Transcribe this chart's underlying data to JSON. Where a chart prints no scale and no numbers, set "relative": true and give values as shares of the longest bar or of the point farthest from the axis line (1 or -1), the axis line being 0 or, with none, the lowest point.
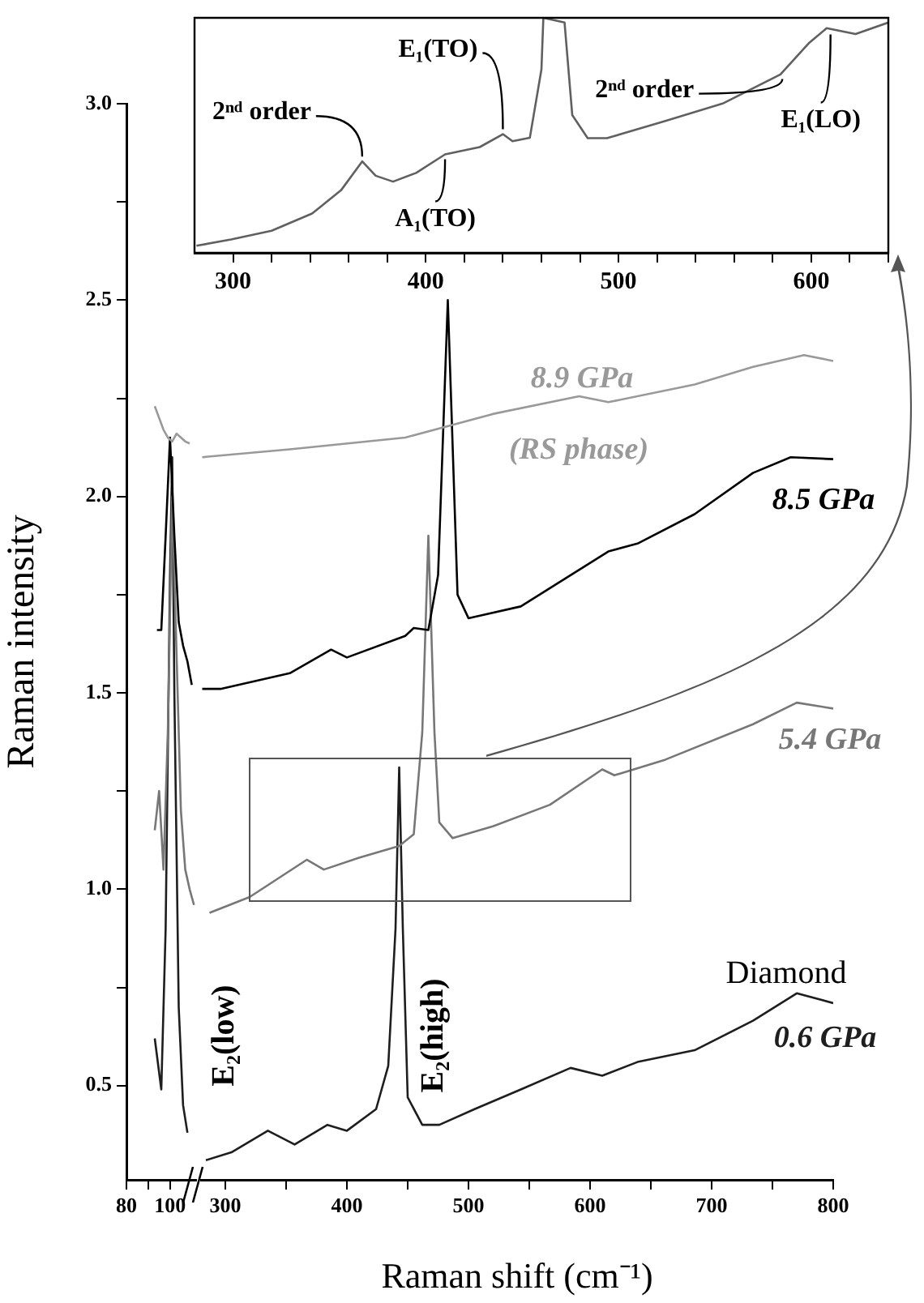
{
  "chart_data": [
    {
      "type": "line",
      "ylabel": "Raman intensity",
      "xlim": [
        80,
        112
      ],
      "xticks": [
        80,
        {
          "value": 90,
          "label": null
        },
        100
      ],
      "ylim": [
        0.26,
        3.0
      ],
      "yticks": [
        0.5,
        {
          "value": 0.75,
          "label": null
        },
        {
          "value": 1,
          "label": "1.0"
        },
        {
          "value": 1.25,
          "label": null
        },
        1.5,
        {
          "value": 1.75,
          "label": null
        },
        {
          "value": 2,
          "label": "2.0"
        },
        {
          "value": 2.25,
          "label": null
        },
        2.5,
        {
          "value": 2.75,
          "label": null
        },
        {
          "value": 3,
          "label": "3.0"
        }
      ],
      "series": [
        {
          "color": "#999999",
          "x": [
            93,
            95,
            97,
            99,
            101,
            103,
            105,
            107,
            109
          ],
          "values": [
            2.23,
            2.2,
            2.17,
            2.15,
            2.14,
            2.16,
            2.15,
            2.14,
            2.135
          ]
        },
        {
          "color": "#000000",
          "x": [
            94,
            96,
            98,
            100,
            102,
            104,
            106,
            108,
            110
          ],
          "values": [
            1.66,
            1.66,
            1.9,
            2.15,
            1.9,
            1.68,
            1.62,
            1.58,
            1.52
          ]
        },
        {
          "color": "#777777",
          "x": [
            93,
            95,
            97,
            99,
            101,
            103,
            105,
            107,
            109,
            111
          ],
          "values": [
            1.15,
            1.25,
            1.05,
            1.4,
            2.0,
            1.6,
            1.2,
            1.05,
            1.0,
            0.96
          ]
        },
        {
          "color": "#1e1e1e",
          "x": [
            93,
            96,
            98,
            100,
            101,
            102,
            104,
            106,
            108
          ],
          "values": [
            0.62,
            0.49,
            0.9,
            1.8,
            2.1,
            1.5,
            0.7,
            0.45,
            0.38
          ]
        }
      ]
    },
    {
      "type": "line",
      "xlabel": "Raman shift (cm⁻¹)",
      "xlim": [
        280,
        800
      ],
      "xticks": [
        300,
        {
          "value": 350,
          "label": null
        },
        400,
        {
          "value": 450,
          "label": null
        },
        500,
        {
          "value": 550,
          "label": null
        },
        600,
        {
          "value": 650,
          "label": null
        },
        700,
        {
          "value": 750,
          "label": null
        },
        800
      ],
      "ylim": [
        0.26,
        3.0
      ],
      "tick_labels": "x",
      "series": [
        {
          "name": "8.9 GPa",
          "color": "#999999",
          "x": [
            281,
            353,
            448,
            520,
            591,
            615,
            686,
            734,
            776,
            800
          ],
          "values": [
            2.1,
            2.12,
            2.15,
            2.21,
            2.255,
            2.24,
            2.285,
            2.33,
            2.36,
            2.345
          ]
        },
        {
          "name": "8.5 GPa",
          "color": "#000000",
          "x": [
            281,
            296,
            353,
            387,
            400,
            448,
            455,
            467,
            475,
            483,
            491,
            500,
            543,
            615,
            639,
            686,
            734,
            765,
            800
          ],
          "values": [
            1.51,
            1.51,
            1.55,
            1.61,
            1.59,
            1.645,
            1.665,
            1.66,
            1.8,
            2.5,
            1.75,
            1.69,
            1.72,
            1.86,
            1.88,
            1.955,
            2.06,
            2.1,
            2.095
          ]
        },
        {
          "name": "5.4 GPa",
          "color": "#777777",
          "x": [
            287,
            320,
            367,
            381,
            410,
            443,
            455,
            462,
            467,
            472,
            476,
            487,
            520,
            567,
            610,
            620,
            662,
            734,
            770,
            800
          ],
          "values": [
            0.94,
            0.98,
            1.075,
            1.05,
            1.08,
            1.11,
            1.14,
            1.4,
            1.9,
            1.4,
            1.17,
            1.13,
            1.16,
            1.215,
            1.305,
            1.29,
            1.33,
            1.42,
            1.475,
            1.46
          ]
        },
        {
          "name": "0.6 GPa",
          "color": "#1e1e1e",
          "x": [
            284,
            305,
            335,
            357,
            384,
            400,
            424,
            434,
            440,
            443,
            446,
            450,
            462,
            476,
            505,
            543,
            584,
            610,
            639,
            686,
            734,
            770,
            800
          ],
          "values": [
            0.31,
            0.33,
            0.385,
            0.35,
            0.4,
            0.385,
            0.44,
            0.55,
            0.9,
            1.31,
            0.9,
            0.47,
            0.4,
            0.4,
            0.44,
            0.49,
            0.545,
            0.525,
            0.56,
            0.59,
            0.665,
            0.735,
            0.71
          ]
        }
      ],
      "annotations": [
        "(RS phase)",
        "Diamond",
        "E₂(low)",
        "E₂(high)"
      ]
    },
    {
      "type": "line",
      "relative": true,
      "xlim": [
        280,
        640
      ],
      "xticks": [
        300,
        {
          "value": 320,
          "label": null
        },
        {
          "value": 340,
          "label": null
        },
        {
          "value": 360,
          "label": null
        },
        {
          "value": 380,
          "label": null
        },
        400,
        {
          "value": 420,
          "label": null
        },
        {
          "value": 440,
          "label": null
        },
        {
          "value": 460,
          "label": null
        },
        {
          "value": 480,
          "label": null
        },
        500,
        {
          "value": 520,
          "label": null
        },
        {
          "value": 540,
          "label": null
        },
        {
          "value": 560,
          "label": null
        },
        {
          "value": 580,
          "label": null
        },
        600,
        {
          "value": 620,
          "label": null
        },
        {
          "value": 640,
          "label": null
        }
      ],
      "series": [
        {
          "color": "#606060",
          "x": [
            281,
            299,
            320,
            341,
            356,
            367,
            374,
            383,
            395,
            410,
            428,
            440,
            445,
            454,
            460,
            461,
            472,
            476,
            484,
            494,
            524,
            554,
            584,
            599,
            608,
            623,
            640
          ],
          "values": [
            0.03,
            0.057,
            0.094,
            0.167,
            0.266,
            0.389,
            0.328,
            0.303,
            0.34,
            0.419,
            0.45,
            0.505,
            0.475,
            0.49,
            0.78,
            1.0,
            0.98,
            0.586,
            0.488,
            0.488,
            0.56,
            0.635,
            0.759,
            0.894,
            0.956,
            0.931,
            0.98
          ]
        }
      ],
      "annotations": [
        {
          "text": "2ⁿᵈ order",
          "x": 367,
          "y": 0.389
        },
        {
          "text": "E₁(TO)",
          "x": 440,
          "y": 0.505
        },
        {
          "text": "A₁(TO)",
          "x": 410,
          "y": 0.419
        },
        {
          "text": "2ⁿᵈ order",
          "x": 585,
          "y": 0.76
        },
        {
          "text": "E₁(LO)",
          "x": 610,
          "y": 0.95
        }
      ]
    }
  ]
}
